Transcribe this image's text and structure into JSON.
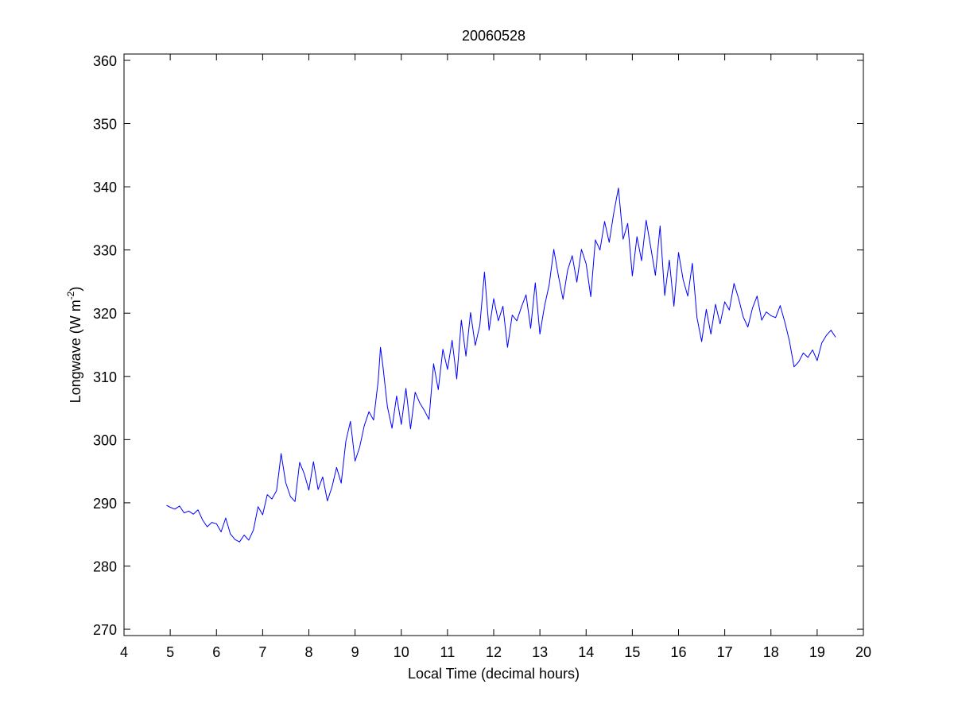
{
  "chart_data": {
    "type": "line",
    "title": "20060528",
    "xlabel": "Local Time (decimal hours)",
    "ylabel": {
      "prefix": "Longwave (W m",
      "superscript": "-2",
      "suffix": ")"
    },
    "xlim": [
      4,
      20
    ],
    "ylim": [
      269,
      361
    ],
    "xticks": [
      4,
      5,
      6,
      7,
      8,
      9,
      10,
      11,
      12,
      13,
      14,
      15,
      16,
      17,
      18,
      19,
      20
    ],
    "yticks": [
      270,
      280,
      290,
      300,
      310,
      320,
      330,
      340,
      350,
      360
    ],
    "grid": false,
    "legend": "none",
    "series": [
      {
        "color": "#0000ff",
        "x": [
          4.92,
          5.0,
          5.1,
          5.2,
          5.3,
          5.4,
          5.5,
          5.6,
          5.7,
          5.8,
          5.9,
          6.0,
          6.1,
          6.2,
          6.3,
          6.4,
          6.5,
          6.6,
          6.7,
          6.8,
          6.9,
          7.0,
          7.1,
          7.2,
          7.3,
          7.35,
          7.4,
          7.5,
          7.6,
          7.7,
          7.8,
          7.9,
          8.0,
          8.1,
          8.2,
          8.3,
          8.4,
          8.5,
          8.6,
          8.7,
          8.8,
          8.9,
          9.0,
          9.1,
          9.2,
          9.3,
          9.4,
          9.5,
          9.55,
          9.6,
          9.7,
          9.8,
          9.9,
          10.0,
          10.1,
          10.2,
          10.3,
          10.4,
          10.5,
          10.6,
          10.7,
          10.8,
          10.9,
          11.0,
          11.1,
          11.2,
          11.3,
          11.4,
          11.5,
          11.6,
          11.7,
          11.8,
          11.9,
          12.0,
          12.1,
          12.2,
          12.3,
          12.4,
          12.5,
          12.6,
          12.7,
          12.8,
          12.9,
          13.0,
          13.1,
          13.2,
          13.3,
          13.4,
          13.5,
          13.6,
          13.7,
          13.8,
          13.9,
          14.0,
          14.1,
          14.2,
          14.3,
          14.4,
          14.5,
          14.6,
          14.7,
          14.8,
          14.9,
          15.0,
          15.1,
          15.2,
          15.3,
          15.4,
          15.5,
          15.6,
          15.7,
          15.8,
          15.9,
          16.0,
          16.1,
          16.2,
          16.3,
          16.4,
          16.5,
          16.6,
          16.7,
          16.8,
          16.9,
          17.0,
          17.1,
          17.2,
          17.3,
          17.4,
          17.5,
          17.6,
          17.7,
          17.8,
          17.9,
          18.0,
          18.1,
          18.2,
          18.3,
          18.4,
          18.5,
          18.6,
          18.7,
          18.8,
          18.9,
          19.0,
          19.1,
          19.2,
          19.3,
          19.4
        ],
        "y": [
          289.6,
          289.3,
          289.0,
          289.5,
          288.4,
          288.7,
          288.2,
          288.9,
          287.3,
          286.2,
          286.9,
          286.7,
          285.4,
          287.6,
          285.1,
          284.2,
          283.8,
          284.9,
          284.1,
          285.7,
          289.4,
          288.1,
          291.3,
          290.6,
          291.9,
          294.7,
          297.8,
          293.2,
          291.0,
          290.2,
          296.4,
          294.6,
          292.0,
          296.5,
          292.1,
          294.1,
          290.3,
          292.5,
          295.6,
          293.1,
          299.7,
          302.9,
          296.6,
          298.8,
          302.2,
          304.4,
          303.1,
          309.3,
          314.6,
          311.8,
          305.2,
          301.8,
          306.9,
          302.4,
          308.1,
          301.7,
          307.5,
          305.8,
          304.6,
          303.2,
          312.0,
          307.9,
          314.3,
          311.1,
          315.7,
          309.6,
          318.9,
          313.2,
          320.1,
          314.9,
          318.1,
          326.5,
          317.3,
          322.3,
          318.8,
          321.1,
          314.6,
          319.7,
          318.8,
          321.0,
          322.9,
          317.6,
          324.8,
          316.7,
          321.1,
          324.5,
          330.1,
          325.9,
          322.2,
          326.8,
          329.1,
          324.9,
          330.1,
          327.8,
          322.6,
          331.6,
          330.0,
          334.5,
          331.2,
          335.9,
          339.8,
          331.7,
          334.2,
          325.9,
          332.1,
          328.3,
          334.7,
          330.4,
          326.0,
          333.8,
          322.8,
          328.4,
          321.1,
          329.6,
          325.3,
          322.7,
          327.9,
          319.3,
          315.5,
          320.6,
          316.7,
          321.4,
          318.3,
          321.8,
          320.5,
          324.7,
          322.3,
          319.4,
          317.8,
          320.8,
          322.7,
          318.9,
          320.2,
          319.6,
          319.3,
          321.2,
          318.6,
          315.6,
          311.5,
          312.3,
          313.7,
          313.0,
          314.2,
          312.5,
          315.3,
          316.5,
          317.3,
          316.2
        ]
      }
    ]
  }
}
